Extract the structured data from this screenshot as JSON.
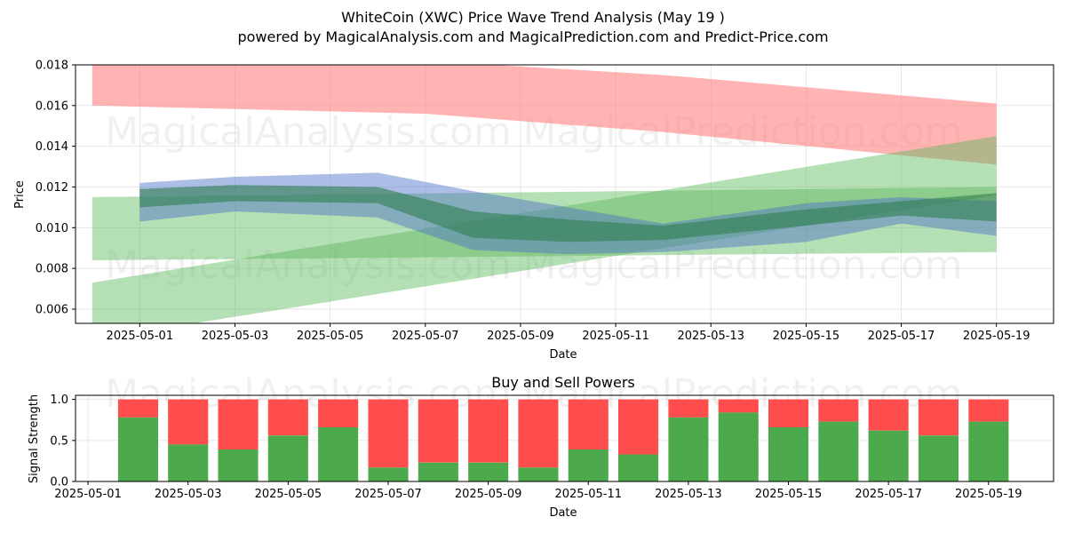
{
  "chart_data": [
    {
      "type": "area",
      "title": "WhiteCoin (XWC) Price Wave Trend Analysis (May 19 )",
      "subtitle": "powered by MagicalAnalysis.com and MagicalPrediction.com and Predict-Price.com",
      "xlabel": "Date",
      "ylabel": "Price",
      "x_range": [
        "2025-04-30",
        "2025-05-20"
      ],
      "ylim": [
        0.0053,
        0.018
      ],
      "x_ticks": [
        "2025-05-01",
        "2025-05-03",
        "2025-05-05",
        "2025-05-07",
        "2025-05-09",
        "2025-05-11",
        "2025-05-13",
        "2025-05-15",
        "2025-05-17",
        "2025-05-19"
      ],
      "y_ticks": [
        "0.006",
        "0.008",
        "0.010",
        "0.012",
        "0.014",
        "0.016",
        "0.018"
      ],
      "grid": true,
      "colors": {
        "red_band": "#ff8080",
        "green_band": "#5cb85c",
        "blue_band": "#4a6fc8",
        "dark_band": "#2e7d4f"
      },
      "series": [
        {
          "color": "red",
          "x": [
            "2025-04-30",
            "2025-05-07",
            "2025-05-12",
            "2025-05-19"
          ],
          "upper": [
            0.0182,
            0.0182,
            0.0175,
            0.0161
          ],
          "lower": [
            0.016,
            0.0156,
            0.0147,
            0.0131
          ]
        },
        {
          "color": "green",
          "x": [
            "2025-04-30",
            "2025-05-19"
          ],
          "upper": [
            0.0115,
            0.012
          ],
          "lower": [
            0.0084,
            0.0088
          ]
        },
        {
          "color": "green",
          "x": [
            "2025-04-30",
            "2025-05-19"
          ],
          "upper": [
            0.0073,
            0.0145
          ],
          "lower": [
            0.0045,
            0.0116
          ]
        },
        {
          "color": "blue",
          "x": [
            "2025-05-01",
            "2025-05-03",
            "2025-05-06",
            "2025-05-08",
            "2025-05-10",
            "2025-05-12",
            "2025-05-15",
            "2025-05-17",
            "2025-05-19"
          ],
          "upper": [
            0.0122,
            0.0125,
            0.0127,
            0.0118,
            0.011,
            0.0102,
            0.0112,
            0.0115,
            0.0113
          ],
          "lower": [
            0.0103,
            0.0108,
            0.0105,
            0.0089,
            0.0087,
            0.0088,
            0.0093,
            0.0102,
            0.0096
          ]
        },
        {
          "color": "dark",
          "x": [
            "2025-05-01",
            "2025-05-03",
            "2025-05-06",
            "2025-05-08",
            "2025-05-10",
            "2025-05-12",
            "2025-05-15",
            "2025-05-17",
            "2025-05-19"
          ],
          "upper": [
            0.0119,
            0.0121,
            0.012,
            0.0108,
            0.0104,
            0.0101,
            0.0109,
            0.0113,
            0.0117
          ],
          "lower": [
            0.011,
            0.0113,
            0.0112,
            0.0095,
            0.0093,
            0.0094,
            0.0101,
            0.0106,
            0.0103
          ]
        }
      ],
      "watermarks": [
        "MagicalAnalysis.com",
        "MagicalPrediction.com"
      ]
    },
    {
      "type": "bar",
      "title": "Buy and Sell Powers",
      "xlabel": "Date",
      "ylabel": "Signal Strength",
      "x_range": [
        "2025-04-30.75",
        "2025-05-20.3"
      ],
      "ylim": [
        0,
        1.05
      ],
      "x_ticks": [
        "2025-05-01",
        "2025-05-03",
        "2025-05-05",
        "2025-05-07",
        "2025-05-09",
        "2025-05-11",
        "2025-05-13",
        "2025-05-15",
        "2025-05-17",
        "2025-05-19"
      ],
      "y_ticks": [
        "0.0",
        "0.5",
        "1.0"
      ],
      "grid": true,
      "colors": {
        "buy": "#4caa4c",
        "sell": "#ff4d4d"
      },
      "dates": [
        "2025-05-02",
        "2025-05-03",
        "2025-05-04",
        "2025-05-05",
        "2025-05-06",
        "2025-05-07",
        "2025-05-08",
        "2025-05-09",
        "2025-05-10",
        "2025-05-11",
        "2025-05-12",
        "2025-05-13",
        "2025-05-14",
        "2025-05-15",
        "2025-05-16",
        "2025-05-17",
        "2025-05-18",
        "2025-05-19"
      ],
      "buy": [
        0.78,
        0.45,
        0.39,
        0.56,
        0.66,
        0.17,
        0.23,
        0.23,
        0.17,
        0.39,
        0.33,
        0.78,
        0.84,
        0.66,
        0.73,
        0.62,
        0.56,
        0.73
      ],
      "total": 1.0,
      "watermarks": [
        "MagicalAnalysis.com",
        "MagicalPrediction.com"
      ]
    }
  ]
}
